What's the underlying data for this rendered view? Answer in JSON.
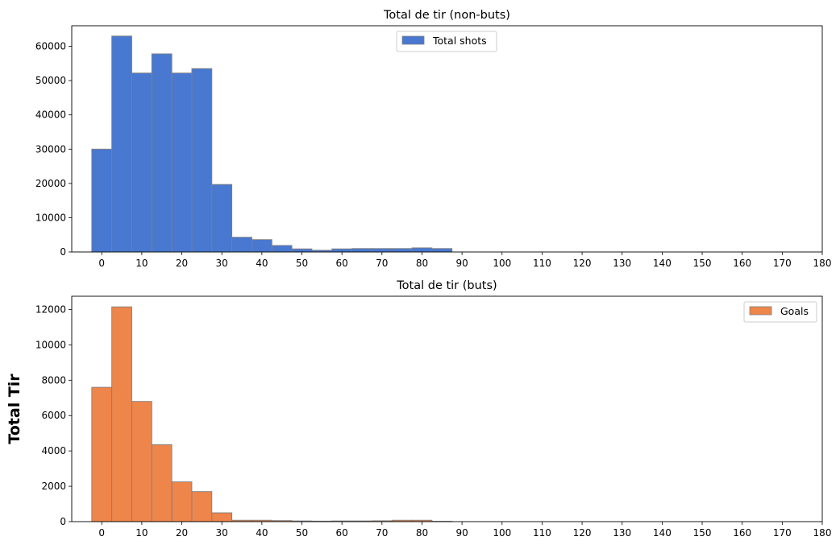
{
  "chart_data": [
    {
      "type": "bar",
      "title": "Total de tir (non-buts)",
      "xlabel": "",
      "ylabel": "",
      "bin_width": 5,
      "x": [
        0,
        5,
        10,
        15,
        20,
        25,
        30,
        35,
        40,
        45,
        50,
        55,
        60,
        65,
        70,
        75,
        80,
        85
      ],
      "values": [
        30000,
        63000,
        52200,
        57800,
        52200,
        53500,
        19700,
        4300,
        3600,
        1900,
        900,
        500,
        900,
        1000,
        1000,
        1000,
        1200,
        1000
      ],
      "xlim": [
        -7.5,
        180
      ],
      "ylim": [
        0,
        66000
      ],
      "xticks": [
        0,
        10,
        20,
        30,
        40,
        50,
        60,
        70,
        80,
        90,
        100,
        110,
        120,
        130,
        140,
        150,
        160,
        170,
        180
      ],
      "yticks": [
        0,
        10000,
        20000,
        30000,
        40000,
        50000,
        60000
      ],
      "series": [
        {
          "name": "Total shots",
          "color": "#4878d0"
        }
      ],
      "legend": "top-center",
      "grid": false
    },
    {
      "type": "bar",
      "title": "Total de tir (buts)",
      "xlabel": "",
      "ylabel": "Total Tir",
      "bin_width": 5,
      "x": [
        0,
        5,
        10,
        15,
        20,
        25,
        30,
        35,
        40,
        45,
        50,
        55,
        60,
        65,
        70,
        75,
        80,
        85
      ],
      "values": [
        7600,
        12150,
        6800,
        4350,
        2250,
        1700,
        500,
        80,
        80,
        60,
        40,
        30,
        40,
        40,
        50,
        80,
        80,
        20
      ],
      "xlim": [
        -7.5,
        180
      ],
      "ylim": [
        0,
        12750
      ],
      "xticks": [
        0,
        10,
        20,
        30,
        40,
        50,
        60,
        70,
        80,
        90,
        100,
        110,
        120,
        130,
        140,
        150,
        160,
        170,
        180
      ],
      "yticks": [
        0,
        2000,
        4000,
        6000,
        8000,
        10000,
        12000
      ],
      "series": [
        {
          "name": "Goals",
          "color": "#ee854a"
        }
      ],
      "legend": "top-right",
      "grid": false
    }
  ]
}
